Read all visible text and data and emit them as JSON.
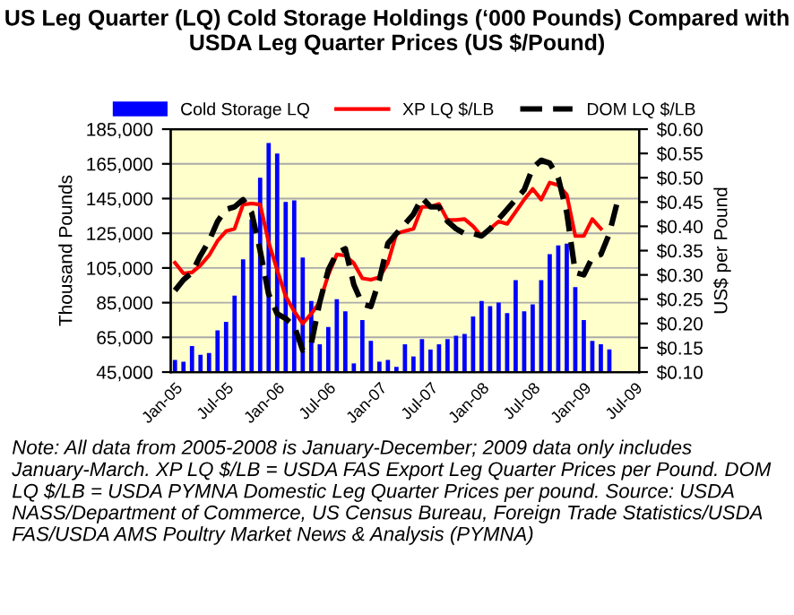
{
  "chart_data": {
    "type": "bar",
    "title": "US Leg Quarter (LQ) Cold Storage Holdings (‘000 Pounds) Compared with USDA Leg Quarter Prices (US $/Pound)",
    "ylabel": "Thousand Pounds",
    "y2label": "US$ per Pound",
    "categories": [
      "Jan-05",
      null,
      null,
      null,
      null,
      null,
      "Jul-05",
      null,
      null,
      null,
      null,
      null,
      "Jan-06",
      null,
      null,
      null,
      null,
      null,
      "Jul-06",
      null,
      null,
      null,
      null,
      null,
      "Jan-07",
      null,
      null,
      null,
      null,
      null,
      "Jul-07",
      null,
      null,
      null,
      null,
      null,
      "Jan-08",
      null,
      null,
      null,
      null,
      null,
      "Jul-08",
      null,
      null,
      null,
      null,
      null,
      "Jan-09",
      null,
      null,
      null,
      null,
      null,
      "Jul-09"
    ],
    "series": [
      {
        "name": "Cold Storage LQ",
        "color": "#0000ff",
        "values": [
          52000,
          51000,
          60000,
          55000,
          56000,
          69000,
          74000,
          89000,
          110000,
          133000,
          157000,
          177000,
          171000,
          143000,
          144000,
          111000,
          86000,
          61000,
          71000,
          87000,
          80000,
          50000,
          75000,
          63000,
          51000,
          52000,
          48000,
          61000,
          54000,
          64000,
          58000,
          61000,
          64000,
          66000,
          67000,
          77000,
          86000,
          83000,
          85000,
          79000,
          98000,
          80000,
          84000,
          98000,
          113000,
          118000,
          119000,
          94000,
          75000,
          63000,
          61000,
          58000,
          null,
          null,
          null
        ]
      },
      {
        "name": "XP LQ $/LB",
        "type": "line",
        "axis": "y2",
        "color": "#ff0000",
        "line_style": "solid",
        "values": [
          0.325,
          0.303,
          0.305,
          0.32,
          0.34,
          0.37,
          0.39,
          0.395,
          0.445,
          0.447,
          0.445,
          0.367,
          0.31,
          0.256,
          0.225,
          0.2,
          0.22,
          0.244,
          0.3,
          0.342,
          0.34,
          0.324,
          0.293,
          0.29,
          0.295,
          0.325,
          0.385,
          0.39,
          0.395,
          0.44,
          0.44,
          0.446,
          0.413,
          0.413,
          0.415,
          0.4,
          0.38,
          0.395,
          0.41,
          0.405,
          0.43,
          0.455,
          0.477,
          0.455,
          0.49,
          0.485,
          0.465,
          0.38,
          0.38,
          0.415,
          0.395,
          null,
          null,
          null,
          null
        ]
      },
      {
        "name": "DOM LQ $/LB",
        "type": "line",
        "axis": "y2",
        "color": "#000000",
        "line_style": "dashed",
        "values": [
          0.268,
          0.29,
          0.305,
          0.34,
          0.37,
          0.41,
          0.435,
          0.44,
          0.455,
          0.428,
          0.35,
          0.26,
          0.22,
          0.21,
          0.195,
          0.145,
          0.158,
          0.244,
          0.31,
          0.345,
          0.354,
          0.28,
          0.24,
          0.235,
          0.29,
          0.365,
          0.385,
          0.405,
          0.425,
          0.459,
          0.44,
          0.44,
          0.41,
          0.395,
          0.385,
          0.385,
          0.38,
          0.395,
          0.415,
          0.435,
          0.455,
          0.475,
          0.52,
          0.536,
          0.53,
          0.5,
          0.428,
          0.305,
          0.3,
          0.336,
          0.342,
          0.385,
          0.455,
          null,
          null
        ]
      }
    ],
    "ylim": [
      45000,
      185000
    ],
    "yticks": [
      {
        "value": 45000,
        "label": "45,000"
      },
      {
        "value": 65000,
        "label": "65,000"
      },
      {
        "value": 85000,
        "label": "85,000"
      },
      {
        "value": 105000,
        "label": "105,000"
      },
      {
        "value": 125000,
        "label": "125,000"
      },
      {
        "value": 145000,
        "label": "145,000"
      },
      {
        "value": 165000,
        "label": "165,000"
      },
      {
        "value": 185000,
        "label": "185,000"
      }
    ],
    "y2lim": [
      0.1,
      0.6
    ],
    "y2ticks": [
      {
        "value": 0.1,
        "label": "$0.10"
      },
      {
        "value": 0.15,
        "label": "$0.15"
      },
      {
        "value": 0.2,
        "label": "$0.20"
      },
      {
        "value": 0.25,
        "label": "$0.25"
      },
      {
        "value": 0.3,
        "label": "$0.30"
      },
      {
        "value": 0.35,
        "label": "$0.35"
      },
      {
        "value": 0.4,
        "label": "$0.40"
      },
      {
        "value": 0.45,
        "label": "$0.45"
      },
      {
        "value": 0.5,
        "label": "$0.50"
      },
      {
        "value": 0.55,
        "label": "$0.55"
      },
      {
        "value": 0.6,
        "label": "$0.60"
      }
    ],
    "grid": "y",
    "legend": "top",
    "marker": "none",
    "annotations": [
      "Note: All data from 2005-2008 is January-December; 2009 data only includes January-March. XP LQ $/LB = USDA FAS Export Leg Quarter Prices per Pound. DOM LQ $/LB = USDA PYMNA Domestic Leg Quarter Prices per pound. Source: USDA NASS/Department of Commerce, US Census Bureau, Foreign Trade Statistics/USDA FAS/USDA AMS Poultry Market News & Analysis (PYMNA)"
    ]
  }
}
